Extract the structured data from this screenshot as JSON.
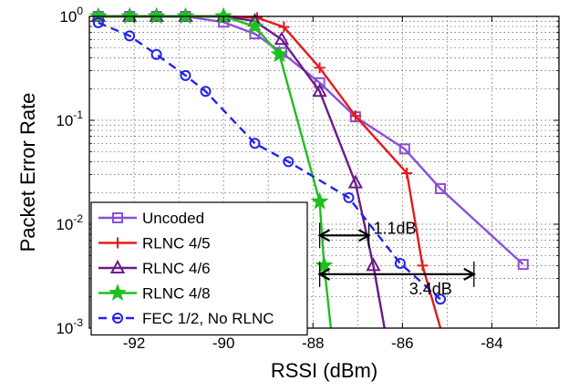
{
  "chart_data": {
    "type": "line",
    "title": "",
    "xlabel": "RSSI (dBm)",
    "ylabel": "Packet Error Rate",
    "xscale": "linear",
    "yscale": "log",
    "xlim": [
      -93,
      -82.5
    ],
    "ylim": [
      0.001,
      1
    ],
    "grid": true,
    "legend_position": "bottom-left",
    "x_ticks": [
      {
        "value": -92,
        "label": "-92"
      },
      {
        "value": -90,
        "label": "-90"
      },
      {
        "value": -88,
        "label": "-88"
      },
      {
        "value": -86,
        "label": "-86"
      },
      {
        "value": -84,
        "label": "-84"
      }
    ],
    "y_ticks": [
      {
        "value": 1,
        "base": "10",
        "exp": "0"
      },
      {
        "value": 0.1,
        "base": "10",
        "exp": "-1"
      },
      {
        "value": 0.01,
        "base": "10",
        "exp": "-2"
      },
      {
        "value": 0.001,
        "base": "10",
        "exp": "-3"
      }
    ],
    "series": [
      {
        "name": "Uncoded",
        "color": "#8b4fd6",
        "marker": "square",
        "dash": "solid",
        "points": [
          [
            -92.8,
            1.0
          ],
          [
            -92.1,
            1.0
          ],
          [
            -91.5,
            1.0
          ],
          [
            -90.85,
            1.0
          ],
          [
            -90.0,
            0.88
          ],
          [
            -89.3,
            0.68
          ],
          [
            -88.7,
            0.45
          ],
          [
            -87.85,
            0.23
          ],
          [
            -87.05,
            0.108
          ],
          [
            -85.95,
            0.053
          ],
          [
            -85.15,
            0.022
          ],
          [
            -83.3,
            0.0041
          ]
        ]
      },
      {
        "name": "RLNC 4/5",
        "color": "#e11b1b",
        "marker": "plus",
        "dash": "solid",
        "points": [
          [
            -92.8,
            1.0
          ],
          [
            -92.1,
            1.0
          ],
          [
            -91.5,
            1.0
          ],
          [
            -90.85,
            1.0
          ],
          [
            -90.0,
            1.0
          ],
          [
            -89.25,
            0.97
          ],
          [
            -88.65,
            0.79
          ],
          [
            -87.85,
            0.32
          ],
          [
            -87.05,
            0.11
          ],
          [
            -85.9,
            0.031
          ],
          [
            -85.55,
            0.004
          ],
          [
            -85.15,
            0.001
          ]
        ]
      },
      {
        "name": "RLNC 4/6",
        "color": "#6c1a8c",
        "marker": "triangle",
        "dash": "solid",
        "points": [
          [
            -92.8,
            1.0
          ],
          [
            -92.1,
            1.0
          ],
          [
            -91.5,
            1.0
          ],
          [
            -90.85,
            1.0
          ],
          [
            -90.0,
            1.0
          ],
          [
            -89.3,
            0.9
          ],
          [
            -88.7,
            0.6
          ],
          [
            -87.85,
            0.19
          ],
          [
            -87.05,
            0.025
          ],
          [
            -86.65,
            0.004
          ],
          [
            -86.4,
            0.001
          ]
        ]
      },
      {
        "name": "RLNC 4/8",
        "color": "#1fbf1f",
        "marker": "star",
        "dash": "solid",
        "points": [
          [
            -92.8,
            1.0
          ],
          [
            -92.1,
            1.0
          ],
          [
            -91.5,
            1.0
          ],
          [
            -90.85,
            1.0
          ],
          [
            -90.0,
            1.0
          ],
          [
            -89.3,
            0.8
          ],
          [
            -88.75,
            0.43
          ],
          [
            -87.85,
            0.0165
          ],
          [
            -87.75,
            0.004
          ],
          [
            -87.6,
            0.001
          ]
        ]
      },
      {
        "name": "FEC 1/2, No RLNC",
        "color": "#2222ee",
        "marker": "circle",
        "dash": "dashed",
        "points": [
          [
            -92.8,
            0.87
          ],
          [
            -92.1,
            0.65
          ],
          [
            -91.5,
            0.43
          ],
          [
            -90.85,
            0.27
          ],
          [
            -90.4,
            0.19
          ],
          [
            -89.3,
            0.06
          ],
          [
            -88.55,
            0.04
          ],
          [
            -87.2,
            0.018
          ],
          [
            -86.05,
            0.0042
          ],
          [
            -85.15,
            0.0019
          ]
        ]
      }
    ],
    "annotations": [
      {
        "label": "1.1dB",
        "y": 0.0078,
        "x_from": -87.85,
        "x_to": -86.75,
        "text_x": -86.65
      },
      {
        "label": "3.4dB",
        "y": 0.0033,
        "x_from": -87.85,
        "x_to": -84.4,
        "text_x": -85.85
      }
    ]
  }
}
